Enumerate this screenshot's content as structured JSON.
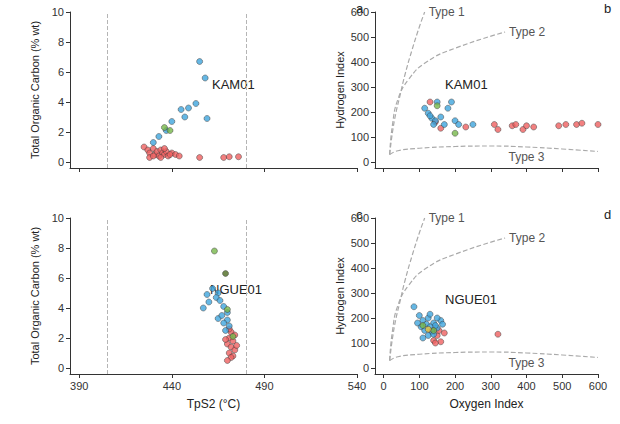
{
  "chart_data": [
    {
      "type": "scatter",
      "title": "a",
      "annotations": [
        "KAM01"
      ],
      "y_label": "Total Organic Carbon (% wt)",
      "xlim": [
        385,
        540
      ],
      "xticks": [
        390,
        440,
        490,
        540
      ],
      "ylim": [
        -0.4,
        10
      ],
      "yticks": [
        0,
        2,
        4,
        6,
        8,
        10
      ],
      "tick_labels": "y",
      "grid": false,
      "vlines": [
        405,
        480
      ],
      "series": [
        {
          "type": "scatter",
          "marker": "circle",
          "color": "#ef6060",
          "x": [
            425,
            427,
            428,
            430,
            431,
            432,
            433,
            434,
            435,
            436,
            437,
            438,
            440,
            442,
            444,
            428,
            430,
            434,
            436,
            439,
            455,
            468,
            471,
            476
          ],
          "y": [
            1.0,
            0.8,
            0.6,
            0.9,
            0.5,
            0.7,
            0.4,
            0.8,
            0.6,
            0.5,
            0.7,
            0.4,
            0.6,
            0.5,
            0.4,
            0.3,
            0.4,
            0.3,
            0.9,
            0.5,
            0.3,
            0.3,
            0.35,
            0.35
          ]
        },
        {
          "type": "scatter",
          "marker": "circle",
          "color": "#3fa5dd",
          "x": [
            455,
            458,
            453,
            449,
            445,
            459,
            440,
            437,
            433,
            430,
            447
          ],
          "y": [
            6.7,
            5.6,
            3.9,
            3.6,
            3.5,
            2.9,
            2.7,
            2.1,
            1.7,
            1.3,
            3.0
          ]
        },
        {
          "type": "scatter",
          "marker": "circle",
          "color": "#77b84a",
          "x": [
            436,
            439
          ],
          "y": [
            2.3,
            2.1
          ]
        }
      ]
    },
    {
      "type": "scatter",
      "title": "b",
      "annotations": [
        "KAM01"
      ],
      "y_label": "Hydrogen Index",
      "xlim": [
        -24,
        600
      ],
      "xticks": [
        0,
        100,
        200,
        300,
        400,
        500,
        600
      ],
      "ylim": [
        -24,
        600
      ],
      "yticks": [
        0,
        100,
        200,
        300,
        400,
        500,
        600
      ],
      "tick_labels": "y",
      "grid": false,
      "series": [
        {
          "type": "line",
          "name": "Type 1",
          "color": "#aaaaaa",
          "line_style": "dashed",
          "x": [
            17,
            25,
            35,
            45,
            60,
            80,
            100,
            115
          ],
          "y": [
            30,
            120,
            200,
            260,
            350,
            450,
            540,
            600
          ]
        },
        {
          "type": "line",
          "name": "Type 2",
          "color": "#aaaaaa",
          "line_style": "dashed",
          "x": [
            17,
            25,
            40,
            70,
            120,
            200,
            340
          ],
          "y": [
            30,
            150,
            250,
            330,
            400,
            455,
            520
          ]
        },
        {
          "type": "line",
          "name": "Type 3",
          "color": "#aaaaaa",
          "line_style": "dashed",
          "x": [
            17,
            40,
            100,
            200,
            300,
            400,
            500,
            600
          ],
          "y": [
            30,
            45,
            55,
            62,
            64,
            60,
            52,
            42
          ]
        },
        {
          "type": "scatter",
          "marker": "circle",
          "color": "#ef6060",
          "x": [
            130,
            145,
            160,
            230,
            320,
            310,
            360,
            370,
            390,
            400,
            420,
            490,
            510,
            540,
            555,
            600
          ],
          "y": [
            240,
            160,
            135,
            140,
            130,
            150,
            145,
            150,
            130,
            145,
            140,
            145,
            150,
            150,
            155,
            150
          ]
        },
        {
          "type": "scatter",
          "marker": "circle",
          "color": "#3fa5dd",
          "x": [
            115,
            125,
            135,
            145,
            150,
            160,
            170,
            180,
            190,
            200,
            210,
            250,
            140,
            130
          ],
          "y": [
            215,
            195,
            175,
            165,
            240,
            180,
            150,
            215,
            240,
            165,
            150,
            150,
            150,
            185
          ]
        },
        {
          "type": "scatter",
          "marker": "circle",
          "color": "#77b84a",
          "x": [
            150,
            200
          ],
          "y": [
            225,
            115
          ]
        }
      ]
    },
    {
      "type": "scatter",
      "title": "c",
      "annotations": [
        "NGUE01"
      ],
      "x_label": "TpS2 (°C)",
      "y_label": "Total Organic Carbon (% wt)",
      "xlim": [
        385,
        540
      ],
      "xticks": [
        390,
        440,
        490,
        540
      ],
      "ylim": [
        -0.4,
        10
      ],
      "yticks": [
        0,
        2,
        4,
        6,
        8,
        10
      ],
      "grid": false,
      "vlines": [
        405,
        480
      ],
      "series": [
        {
          "type": "scatter",
          "marker": "circle",
          "color": "#ef6060",
          "x": [
            472,
            474,
            471,
            473,
            470,
            472,
            474,
            471,
            473,
            472,
            470,
            469,
            475,
            471
          ],
          "y": [
            2.4,
            2.2,
            2.0,
            1.8,
            1.6,
            1.4,
            1.2,
            1.0,
            0.8,
            0.7,
            0.5,
            1.9,
            1.5,
            2.6
          ]
        },
        {
          "type": "scatter",
          "marker": "circle",
          "color": "#3fa5dd",
          "x": [
            462,
            465,
            459,
            460,
            464,
            466,
            468,
            470,
            465,
            467,
            470,
            468,
            471,
            469,
            457
          ],
          "y": [
            5.3,
            5.0,
            4.9,
            4.4,
            4.7,
            4.5,
            4.1,
            3.7,
            3.3,
            3.5,
            3.2,
            3.0,
            2.8,
            2.5,
            4.0
          ]
        },
        {
          "type": "scatter",
          "marker": "circle",
          "color": "#77b84a",
          "x": [
            463,
            470,
            473
          ],
          "y": [
            7.8,
            3.9,
            2.1
          ]
        },
        {
          "type": "scatter",
          "marker": "circle",
          "color": "#4d6b22",
          "x": [
            469
          ],
          "y": [
            6.3
          ]
        }
      ]
    },
    {
      "type": "scatter",
      "title": "d",
      "annotations": [
        "NGUE01"
      ],
      "x_label": "Oxygen Index",
      "y_label": "Hydrogen Index",
      "xlim": [
        -24,
        600
      ],
      "xticks": [
        0,
        100,
        200,
        300,
        400,
        500,
        600
      ],
      "ylim": [
        -24,
        600
      ],
      "yticks": [
        0,
        100,
        200,
        300,
        400,
        500,
        600
      ],
      "grid": false,
      "series": [
        {
          "type": "line",
          "name": "Type 1",
          "color": "#aaaaaa",
          "line_style": "dashed",
          "x": [
            17,
            25,
            35,
            45,
            60,
            80,
            100,
            115
          ],
          "y": [
            30,
            120,
            200,
            260,
            350,
            450,
            540,
            600
          ]
        },
        {
          "type": "line",
          "name": "Type 2",
          "color": "#aaaaaa",
          "line_style": "dashed",
          "x": [
            17,
            25,
            40,
            70,
            120,
            200,
            340
          ],
          "y": [
            30,
            150,
            250,
            330,
            400,
            455,
            520
          ]
        },
        {
          "type": "line",
          "name": "Type 3",
          "color": "#aaaaaa",
          "line_style": "dashed",
          "x": [
            17,
            40,
            100,
            200,
            300,
            400,
            500,
            600
          ],
          "y": [
            30,
            45,
            55,
            62,
            64,
            60,
            52,
            42
          ]
        },
        {
          "type": "scatter",
          "marker": "circle",
          "color": "#ef6060",
          "x": [
            140,
            150,
            160,
            170,
            135,
            155,
            320,
            145
          ],
          "y": [
            110,
            130,
            105,
            140,
            150,
            150,
            135,
            100
          ]
        },
        {
          "type": "scatter",
          "marker": "circle",
          "color": "#3fa5dd",
          "x": [
            85,
            100,
            110,
            120,
            125,
            130,
            140,
            150,
            105,
            115,
            135,
            145,
            160,
            125,
            110,
            130,
            150,
            95,
            140,
            165
          ],
          "y": [
            245,
            210,
            190,
            175,
            200,
            215,
            180,
            160,
            165,
            150,
            145,
            170,
            190,
            130,
            120,
            165,
            200,
            180,
            135,
            175
          ]
        },
        {
          "type": "scatter",
          "marker": "circle",
          "color": "#77b84a",
          "x": [
            110,
            140
          ],
          "y": [
            170,
            150
          ]
        },
        {
          "type": "scatter",
          "marker": "circle",
          "color": "#e6c440",
          "x": [
            125
          ],
          "y": [
            155
          ]
        }
      ]
    }
  ]
}
